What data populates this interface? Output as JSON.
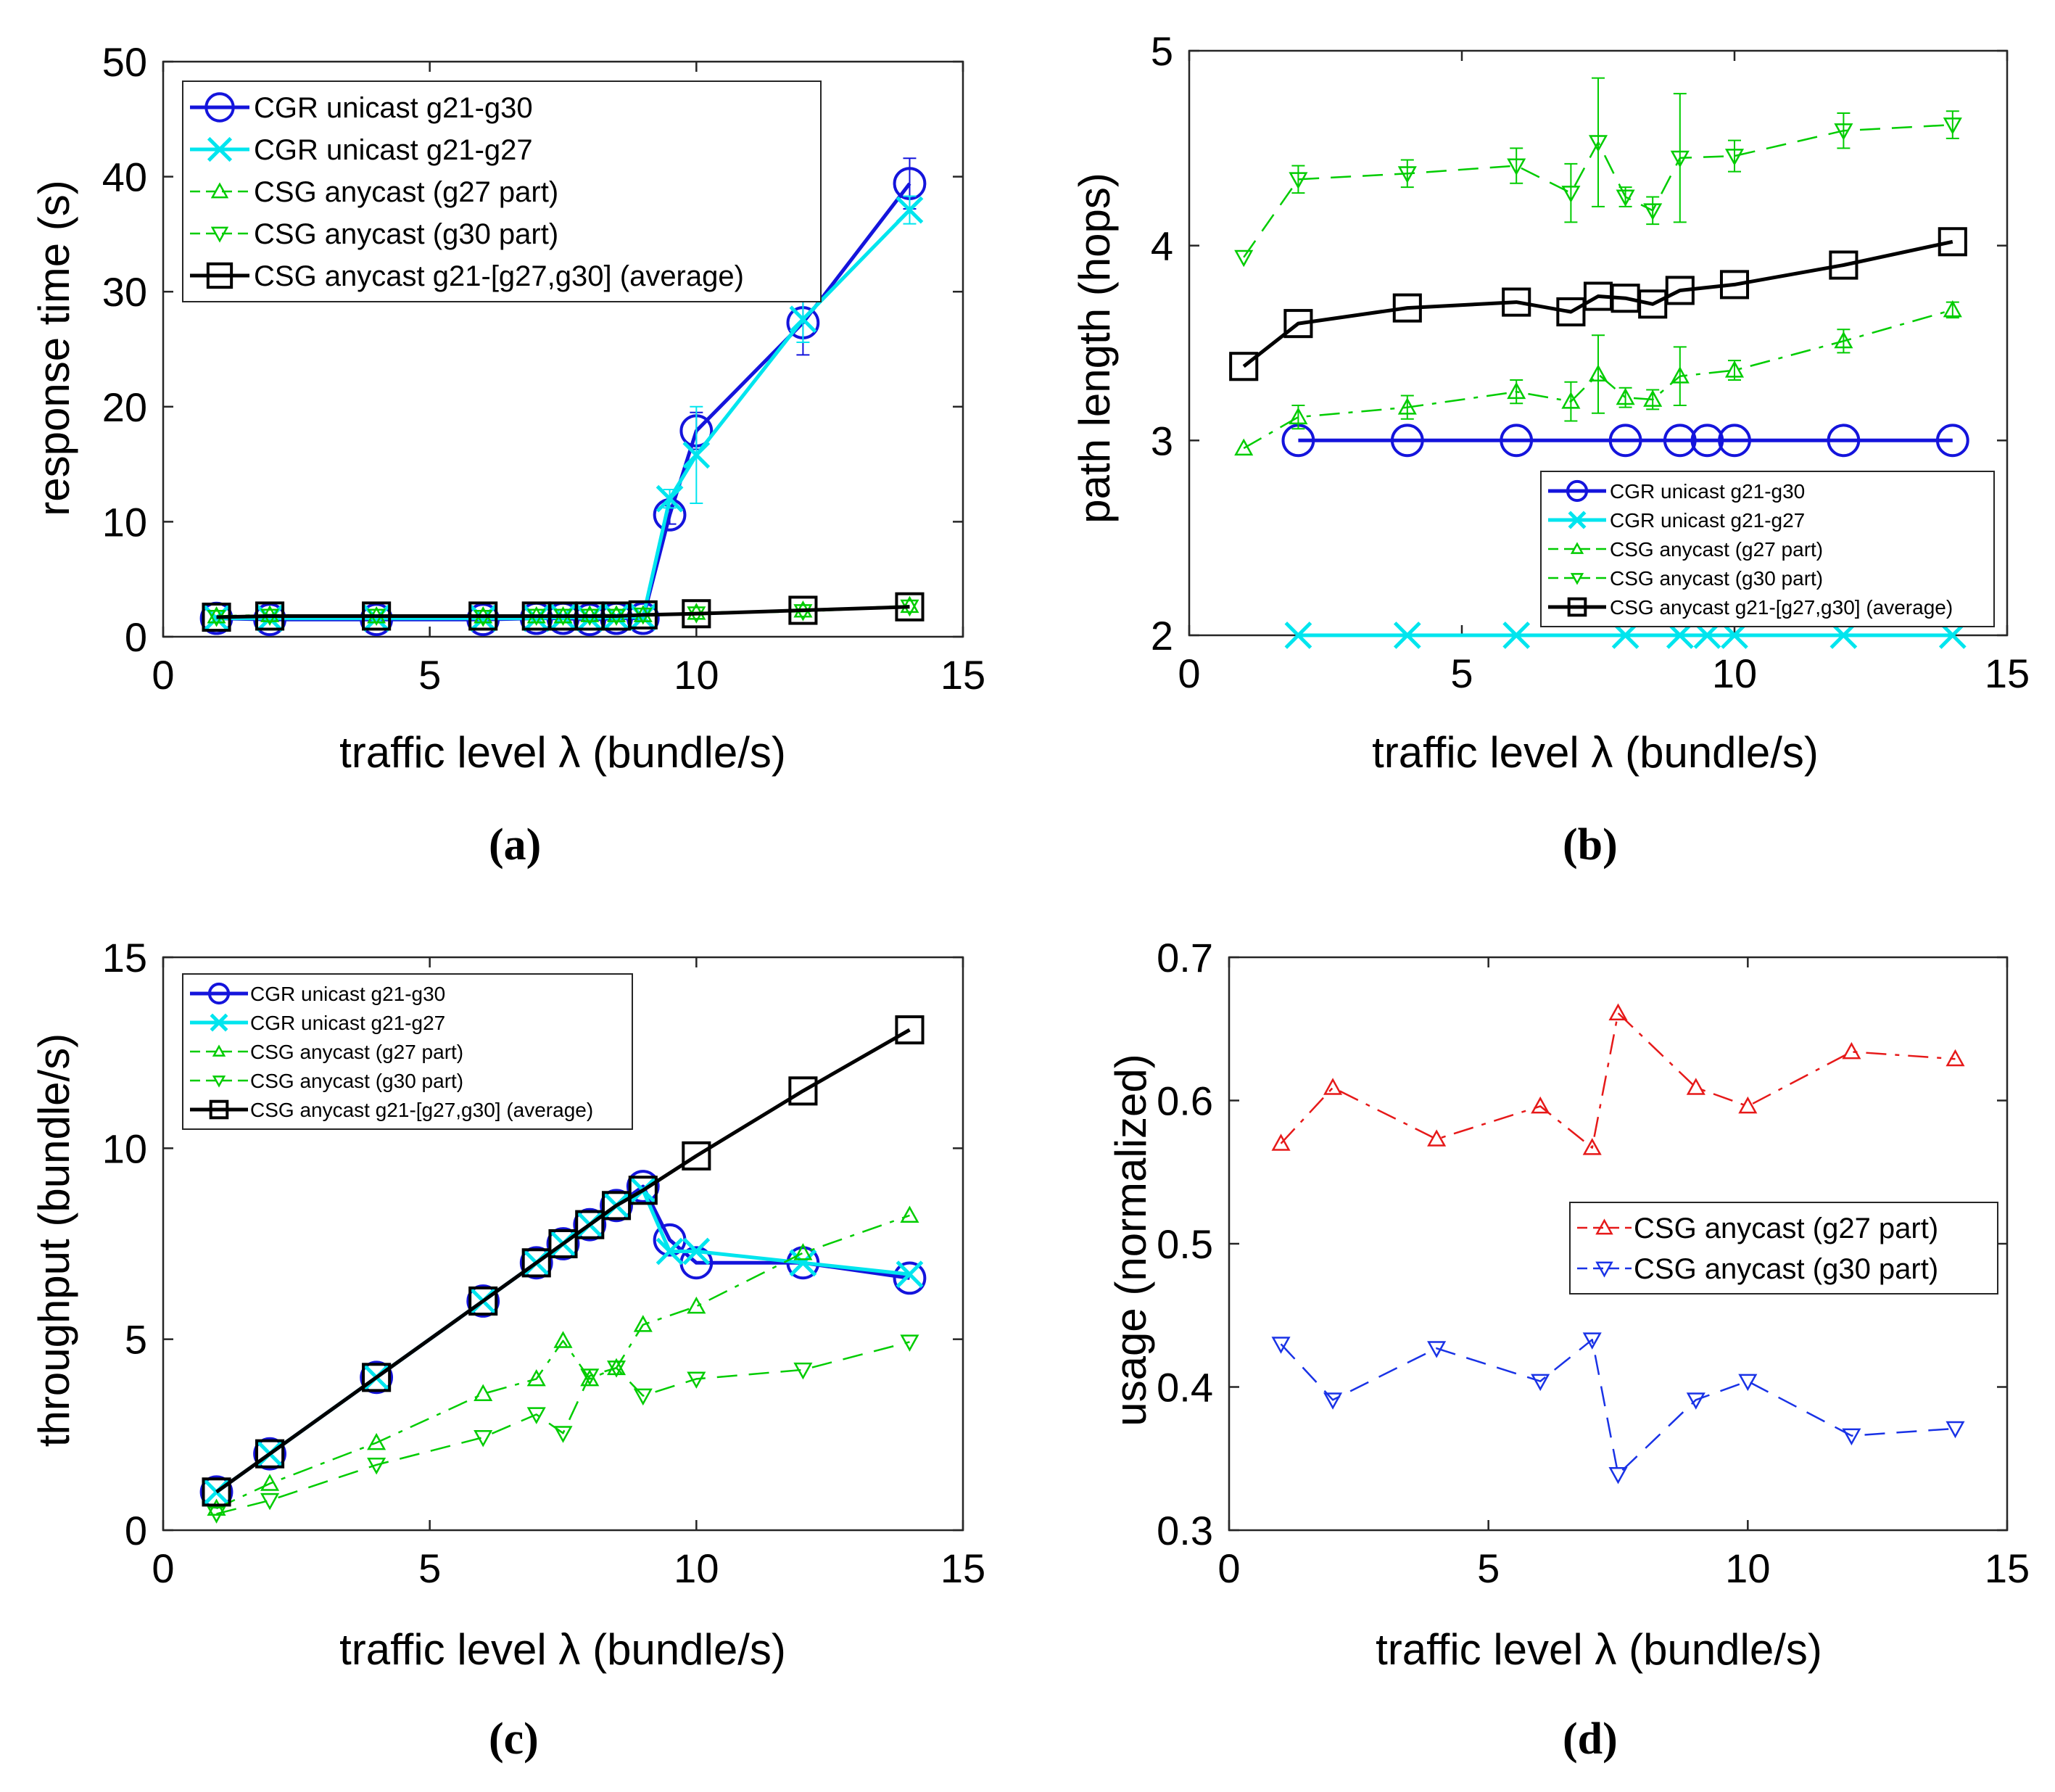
{
  "chart_data": [
    {
      "panel": "(a)",
      "type": "line",
      "xlabel": "traffic level λ (bundle/s)",
      "ylabel": "response time (s)",
      "xlim": [
        0,
        15
      ],
      "ylim": [
        0,
        50
      ],
      "xticks": [
        0,
        5,
        10,
        15
      ],
      "yticks": [
        0,
        10,
        20,
        30,
        40,
        50
      ],
      "grid": false,
      "legend_position": "top-left",
      "series": [
        {
          "name": "CGR unicast g21-g30",
          "color": "#1414dc",
          "marker": "circle",
          "dash": "solid",
          "x": [
            1,
            2,
            4,
            6,
            7,
            7.5,
            8,
            8.5,
            9,
            9.5,
            10,
            12,
            14
          ],
          "y": [
            1.6,
            1.5,
            1.5,
            1.5,
            1.6,
            1.6,
            1.5,
            1.6,
            1.6,
            10.6,
            17.9,
            27.3,
            39.4
          ],
          "err": [
            0,
            0,
            0,
            0,
            0,
            0,
            0,
            0,
            0,
            0.8,
            1.6,
            2.8,
            2.2
          ]
        },
        {
          "name": "CGR unicast g21-g27",
          "color": "#00e5ee",
          "marker": "x",
          "dash": "solid",
          "x": [
            1,
            2,
            4,
            6,
            7,
            7.5,
            8,
            8.5,
            9,
            9.5,
            10,
            12,
            14
          ],
          "y": [
            1.6,
            1.6,
            1.6,
            1.6,
            1.6,
            1.7,
            1.6,
            1.7,
            1.7,
            12.0,
            15.8,
            27.6,
            37.1
          ],
          "err": [
            0,
            0,
            0,
            0,
            0,
            0,
            0,
            0,
            0,
            0.8,
            4.2,
            2.0,
            1.2
          ]
        },
        {
          "name": "CSG anycast (g27 part)",
          "color": "#00cc00",
          "marker": "triangle-up",
          "dash": "dashdot",
          "x": [
            1,
            2,
            4,
            6,
            7,
            7.5,
            8,
            8.5,
            9,
            10,
            12,
            14
          ],
          "y": [
            1.8,
            1.9,
            1.8,
            1.8,
            1.8,
            1.8,
            1.9,
            1.9,
            1.9,
            2.1,
            2.3,
            2.7
          ]
        },
        {
          "name": "CSG anycast (g30 part)",
          "color": "#00cc00",
          "marker": "triangle-down",
          "dash": "dashed",
          "x": [
            1,
            2,
            4,
            6,
            7,
            7.5,
            8,
            8.5,
            9,
            10,
            12,
            14
          ],
          "y": [
            1.7,
            1.8,
            1.8,
            1.7,
            1.8,
            1.8,
            1.8,
            1.8,
            1.9,
            2.0,
            2.2,
            2.6
          ]
        },
        {
          "name": "CSG anycast g21-[g27,g30] (average)",
          "color": "#000000",
          "marker": "square",
          "dash": "solid",
          "x": [
            1,
            2,
            4,
            6,
            7,
            7.5,
            8,
            8.5,
            9,
            10,
            12,
            14
          ],
          "y": [
            1.7,
            1.8,
            1.8,
            1.8,
            1.8,
            1.8,
            1.8,
            1.8,
            1.9,
            2.0,
            2.3,
            2.6
          ]
        }
      ]
    },
    {
      "panel": "(b)",
      "type": "line",
      "xlabel": "traffic level λ (bundle/s)",
      "ylabel": "path length (hops)",
      "xlim": [
        0,
        15
      ],
      "ylim": [
        2,
        5
      ],
      "xticks": [
        0,
        5,
        10,
        15
      ],
      "yticks": [
        2,
        3,
        4,
        5
      ],
      "grid": false,
      "legend_position": "bottom-right",
      "series": [
        {
          "name": "CGR unicast g21-g30",
          "color": "#1414dc",
          "marker": "circle",
          "dash": "solid",
          "x": [
            2,
            4,
            6,
            8,
            9,
            9.5,
            10,
            12,
            14
          ],
          "y": [
            3,
            3,
            3,
            3,
            3,
            3,
            3,
            3,
            3
          ]
        },
        {
          "name": "CGR unicast g21-g27",
          "color": "#00e5ee",
          "marker": "x",
          "dash": "solid",
          "x": [
            2,
            4,
            6,
            8,
            9,
            9.5,
            10,
            12,
            14
          ],
          "y": [
            2,
            2,
            2,
            2,
            2,
            2,
            2,
            2,
            2
          ]
        },
        {
          "name": "CSG anycast (g27 part)",
          "color": "#00cc00",
          "marker": "triangle-up",
          "dash": "dashdot",
          "x": [
            1,
            2,
            4,
            6,
            7,
            7.5,
            8,
            8.5,
            9,
            10,
            12,
            14
          ],
          "y": [
            2.96,
            3.12,
            3.17,
            3.25,
            3.2,
            3.34,
            3.22,
            3.21,
            3.33,
            3.36,
            3.51,
            3.67
          ],
          "err": [
            0,
            0.06,
            0.06,
            0.06,
            0.1,
            0.2,
            0.05,
            0.05,
            0.15,
            0.05,
            0.06,
            0.04
          ]
        },
        {
          "name": "CSG anycast (g30 part)",
          "color": "#00cc00",
          "marker": "triangle-down",
          "dash": "dashed",
          "x": [
            1,
            2,
            4,
            6,
            7,
            7.5,
            8,
            8.5,
            9,
            10,
            12,
            14
          ],
          "y": [
            3.94,
            4.34,
            4.37,
            4.41,
            4.27,
            4.53,
            4.25,
            4.18,
            4.45,
            4.46,
            4.59,
            4.62
          ],
          "err": [
            0,
            0.07,
            0.07,
            0.09,
            0.15,
            0.33,
            0.05,
            0.07,
            0.33,
            0.08,
            0.09,
            0.07
          ]
        },
        {
          "name": "CSG anycast g21-[g27,g30] (average)",
          "color": "#000000",
          "marker": "square",
          "dash": "solid",
          "x": [
            1,
            2,
            4,
            6,
            7,
            7.5,
            8,
            8.5,
            9,
            10,
            12,
            14
          ],
          "y": [
            3.38,
            3.6,
            3.68,
            3.71,
            3.66,
            3.74,
            3.73,
            3.7,
            3.77,
            3.8,
            3.9,
            4.02
          ]
        }
      ]
    },
    {
      "panel": "(c)",
      "type": "line",
      "xlabel": "traffic level λ (bundle/s)",
      "ylabel": "throughput (bundle/s)",
      "xlim": [
        0,
        15
      ],
      "ylim": [
        0,
        15
      ],
      "xticks": [
        0,
        5,
        10,
        15
      ],
      "yticks": [
        0,
        5,
        10,
        15
      ],
      "grid": false,
      "legend_position": "top-left",
      "series": [
        {
          "name": "CGR unicast g21-g30",
          "color": "#1414dc",
          "marker": "circle",
          "dash": "solid",
          "x": [
            1,
            2,
            4,
            6,
            7,
            7.5,
            8,
            8.5,
            9,
            9.5,
            10,
            12,
            14
          ],
          "y": [
            1,
            2,
            4,
            6,
            7,
            7.5,
            8,
            8.5,
            9.0,
            7.6,
            7.0,
            7.0,
            6.6
          ]
        },
        {
          "name": "CGR unicast g21-g27",
          "color": "#00e5ee",
          "marker": "x",
          "dash": "solid",
          "x": [
            1,
            2,
            4,
            6,
            7,
            7.5,
            8,
            8.5,
            9,
            9.5,
            10,
            12,
            14
          ],
          "y": [
            1,
            2,
            4,
            6,
            7,
            7.5,
            8,
            8.5,
            8.9,
            7.3,
            7.3,
            7.0,
            6.7
          ]
        },
        {
          "name": "CSG anycast (g27 part)",
          "color": "#00cc00",
          "marker": "triangle-up",
          "dash": "dashdot",
          "x": [
            1,
            2,
            4,
            6,
            7,
            7.5,
            8,
            8.5,
            9,
            10,
            12,
            14
          ],
          "y": [
            0.57,
            1.22,
            2.29,
            3.57,
            3.96,
            4.96,
            3.96,
            4.25,
            5.38,
            5.86,
            7.26,
            8.24
          ]
        },
        {
          "name": "CSG anycast (g30 part)",
          "color": "#00cc00",
          "marker": "triangle-down",
          "dash": "dashed",
          "x": [
            1,
            2,
            4,
            6,
            7,
            7.5,
            8,
            8.5,
            9,
            10,
            12,
            14
          ],
          "y": [
            0.43,
            0.78,
            1.71,
            2.43,
            3.03,
            2.54,
            4.04,
            4.25,
            3.52,
            3.96,
            4.2,
            4.93
          ]
        },
        {
          "name": "CSG anycast g21-[g27,g30] (average)",
          "color": "#000000",
          "marker": "square",
          "dash": "solid",
          "x": [
            1,
            2,
            4,
            6,
            7,
            7.5,
            8,
            8.5,
            9,
            10,
            12,
            14
          ],
          "y": [
            1,
            2,
            4,
            6,
            7,
            7.5,
            8,
            8.5,
            8.9,
            9.8,
            11.5,
            13.1
          ]
        }
      ]
    },
    {
      "panel": "(d)",
      "type": "line",
      "xlabel": "traffic level λ (bundle/s)",
      "ylabel": "usage (normalized)",
      "xlim": [
        0,
        15
      ],
      "ylim": [
        0.3,
        0.7
      ],
      "xticks": [
        0,
        5,
        10,
        15
      ],
      "yticks": [
        0.3,
        0.4,
        0.5,
        0.6,
        0.7
      ],
      "grid": false,
      "legend_position": "right",
      "series": [
        {
          "name": "CSG anycast (g27 part)",
          "color": "#e61919",
          "marker": "triangle-up",
          "dash": "dashdot",
          "x": [
            1,
            2,
            4,
            6,
            7,
            7.5,
            9,
            10,
            12,
            14
          ],
          "y": [
            0.57,
            0.609,
            0.573,
            0.596,
            0.567,
            0.661,
            0.609,
            0.596,
            0.634,
            0.629
          ]
        },
        {
          "name": "CSG anycast (g30 part)",
          "color": "#1932e6",
          "marker": "triangle-down",
          "dash": "dashed",
          "x": [
            1,
            2,
            4,
            6,
            7,
            7.5,
            9,
            10,
            12,
            14
          ],
          "y": [
            0.43,
            0.391,
            0.427,
            0.404,
            0.433,
            0.339,
            0.391,
            0.404,
            0.366,
            0.371
          ]
        }
      ]
    }
  ]
}
